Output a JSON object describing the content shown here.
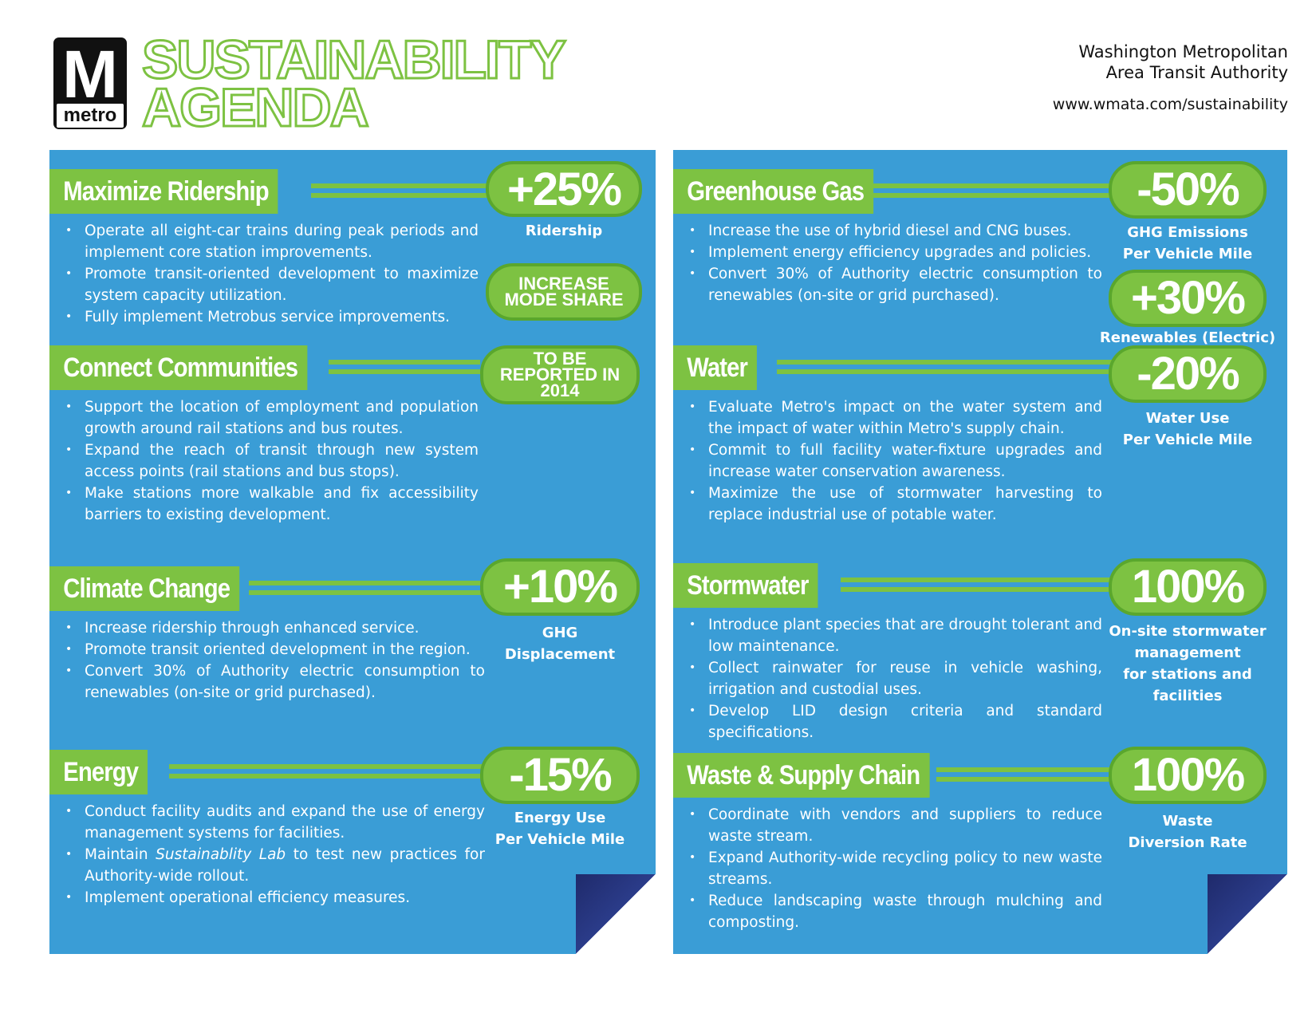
{
  "header": {
    "logo_letter": "M",
    "logo_word": "metro",
    "title_line1": "SUSTAINABILITY",
    "title_line2": "AGENDA",
    "agency_line1": "Washington Metropolitan",
    "agency_line2": "Area Transit Authority",
    "website": "www.wmata.com/sustainability"
  },
  "colors": {
    "panel_blue": "#3a9dd6",
    "accent_green": "#7dc242",
    "fold_navy": "#1f2a6b"
  },
  "left": {
    "ridership": {
      "title": "Maximize Ridership",
      "bullets": [
        "Operate all eight-car trains during peak periods and implement core station improvements.",
        "Promote transit-oriented development to maximize system capacity utilization.",
        "Fully implement Metrobus service improvements."
      ],
      "metric": "+25%",
      "metric_label": "Ridership",
      "metric2": [
        "INCREASE",
        "MODE SHARE"
      ]
    },
    "communities": {
      "title": "Connect Communities",
      "bullets": [
        "Support the location of employment and population growth around rail stations and bus routes.",
        "Expand the reach of transit through new system access points (rail stations and bus stops).",
        "Make stations more walkable and fix accessibility barriers to existing development."
      ],
      "metric": [
        "TO BE",
        "REPORTED IN",
        "2014"
      ]
    },
    "climate": {
      "title": "Climate Change",
      "bullets": [
        "Increase ridership through enhanced service.",
        "Promote transit oriented development in the region.",
        "Convert 30% of Authority electric consumption to renewables (on-site or grid purchased)."
      ],
      "metric": "+10%",
      "metric_label": [
        "GHG",
        "Displacement"
      ]
    },
    "energy": {
      "title": "Energy",
      "bullets": [
        "Conduct facility audits and expand the use of energy management systems for facilities.",
        {
          "pre": "Maintain ",
          "italic": "Sustainablity Lab",
          "post": " to test new practices for Authority-wide rollout."
        },
        "Implement operational efficiency measures."
      ],
      "metric": "-15%",
      "metric_label": [
        "Energy Use",
        "Per Vehicle Mile"
      ]
    }
  },
  "right": {
    "ghg": {
      "title": "Greenhouse Gas",
      "bullets": [
        "Increase the use of hybrid diesel and CNG buses.",
        "Implement energy efficiency upgrades and policies.",
        "Convert 30% of Authority electric consumption to renewables (on-site or grid purchased)."
      ],
      "metric": "-50%",
      "metric_label": [
        "GHG Emissions",
        "Per Vehicle Mile"
      ],
      "metric2": "+30%",
      "metric2_label": "Renewables (Electric)"
    },
    "water": {
      "title": "Water",
      "bullets": [
        "Evaluate Metro's impact on the water system and the impact of water within Metro's supply chain.",
        "Commit to full facility water-fixture upgrades and increase water conservation awareness.",
        "Maximize the use of stormwater harvesting to replace industrial use of potable water."
      ],
      "metric": "-20%",
      "metric_label": [
        "Water Use",
        "Per Vehicle Mile"
      ]
    },
    "stormwater": {
      "title": "Stormwater",
      "bullets": [
        "Introduce plant species that are drought tolerant and low maintenance.",
        "Collect rainwater for reuse in vehicle washing, irrigation and custodial uses.",
        "Develop LID design criteria and standard specifications."
      ],
      "metric": "100%",
      "metric_label": [
        "On-site stormwater",
        "management",
        "for stations and",
        "facilities"
      ]
    },
    "waste": {
      "title": "Waste & Supply Chain",
      "bullets": [
        "Coordinate with vendors and suppliers to reduce waste stream.",
        "Expand Authority-wide recycling policy to new waste streams.",
        "Reduce landscaping waste through mulching and composting."
      ],
      "metric": "100%",
      "metric_label": [
        "Waste",
        "Diversion Rate"
      ]
    }
  }
}
